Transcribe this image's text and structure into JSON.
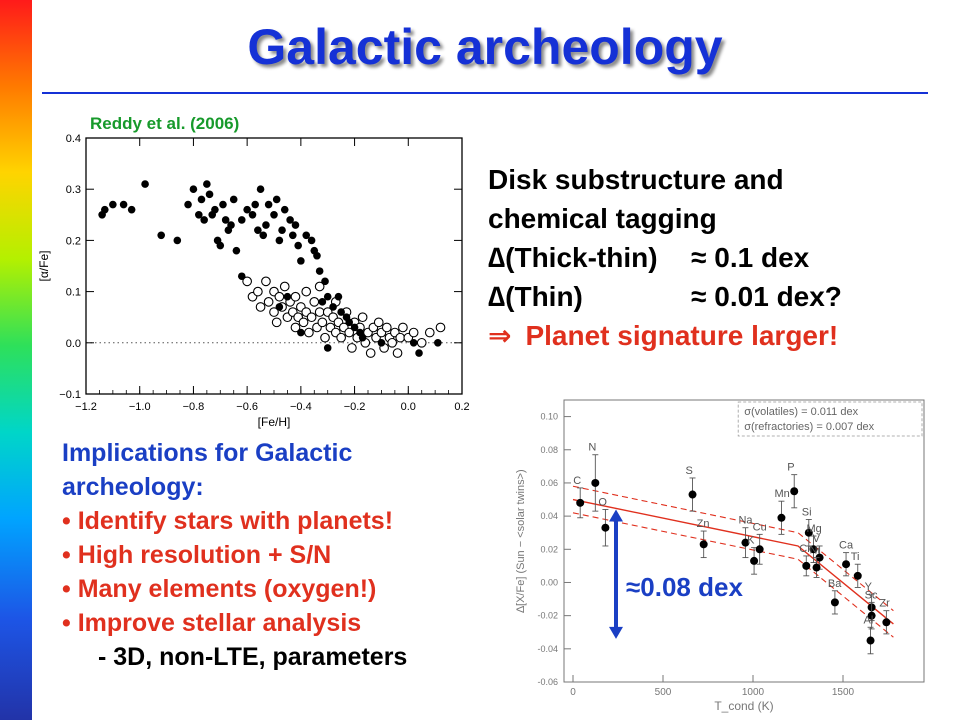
{
  "slide": {
    "title": "Galactic archeology",
    "citation": "Reddy et al. (2006)",
    "headline": [
      "Disk substructure and",
      "chemical tagging"
    ],
    "deltas": [
      {
        "symbol": "∆",
        "label": "(Thick-thin)",
        "value": "≈ 0.1 dex"
      },
      {
        "symbol": "∆",
        "label": "(Thin)",
        "value": "≈ 0.01 dex?"
      }
    ],
    "conclusion": {
      "symbol": "⇒",
      "text": "Planet signature larger!"
    },
    "implications": {
      "heading": [
        "Implications for Galactic",
        "archeology:"
      ],
      "bullets": [
        "Identify stars with planets!",
        "High resolution + S/N",
        "Many elements (oxygen!)",
        "Improve stellar analysis"
      ],
      "subbullet": "3D, non-LTE, parameters"
    },
    "dex_annotation": "≈0.08 dex",
    "colors": {
      "title": "#1531d6",
      "citation": "#179a2b",
      "emphasis": "#e0301e",
      "body_blue": "#1a3fc4"
    }
  },
  "chart_data": [
    {
      "type": "scatter",
      "xlabel": "[Fe/H]",
      "ylabel": "[α/Fe]",
      "xlim": [
        -1.2,
        0.2
      ],
      "ylim": [
        -0.1,
        0.4
      ],
      "xticks": [
        -1.2,
        -1.0,
        -0.8,
        -0.6,
        -0.4,
        -0.2,
        0.0,
        0.2
      ],
      "yticks": [
        -0.1,
        0.0,
        0.1,
        0.2,
        0.3,
        0.4
      ],
      "xtick_labels": [
        "-1.2",
        "-1.0",
        "-0.8",
        "-0.6",
        "-0.4",
        "-0.2",
        "0.0",
        "0.2"
      ],
      "ytick_labels": [
        "-0.1",
        "0.0",
        "0.1",
        "0.2",
        "0.3",
        "0.4"
      ],
      "reference_line": 0.0,
      "series": [
        {
          "marker": "filled",
          "points": [
            [
              -1.14,
              0.25
            ],
            [
              -1.13,
              0.26
            ],
            [
              -1.1,
              0.27
            ],
            [
              -1.06,
              0.27
            ],
            [
              -1.03,
              0.26
            ],
            [
              -0.98,
              0.31
            ],
            [
              -0.92,
              0.21
            ],
            [
              -0.86,
              0.2
            ],
            [
              -0.82,
              0.27
            ],
            [
              -0.8,
              0.3
            ],
            [
              -0.78,
              0.25
            ],
            [
              -0.77,
              0.28
            ],
            [
              -0.76,
              0.24
            ],
            [
              -0.75,
              0.31
            ],
            [
              -0.74,
              0.29
            ],
            [
              -0.73,
              0.25
            ],
            [
              -0.72,
              0.26
            ],
            [
              -0.71,
              0.2
            ],
            [
              -0.7,
              0.19
            ],
            [
              -0.69,
              0.27
            ],
            [
              -0.68,
              0.24
            ],
            [
              -0.67,
              0.22
            ],
            [
              -0.66,
              0.23
            ],
            [
              -0.65,
              0.28
            ],
            [
              -0.64,
              0.18
            ],
            [
              -0.62,
              0.24
            ],
            [
              -0.6,
              0.26
            ],
            [
              -0.58,
              0.25
            ],
            [
              -0.57,
              0.27
            ],
            [
              -0.56,
              0.22
            ],
            [
              -0.55,
              0.3
            ],
            [
              -0.54,
              0.21
            ],
            [
              -0.53,
              0.23
            ],
            [
              -0.52,
              0.27
            ],
            [
              -0.5,
              0.25
            ],
            [
              -0.49,
              0.28
            ],
            [
              -0.48,
              0.2
            ],
            [
              -0.47,
              0.22
            ],
            [
              -0.46,
              0.26
            ],
            [
              -0.44,
              0.24
            ],
            [
              -0.43,
              0.21
            ],
            [
              -0.42,
              0.23
            ],
            [
              -0.41,
              0.19
            ],
            [
              -0.4,
              0.16
            ],
            [
              -0.38,
              0.21
            ],
            [
              -0.36,
              0.2
            ],
            [
              -0.35,
              0.18
            ],
            [
              -0.34,
              0.17
            ],
            [
              -0.33,
              0.14
            ],
            [
              -0.31,
              0.12
            ],
            [
              -0.3,
              0.09
            ],
            [
              -0.28,
              0.07
            ],
            [
              -0.26,
              0.09
            ],
            [
              -0.25,
              0.06
            ],
            [
              -0.23,
              0.05
            ],
            [
              -0.22,
              0.04
            ],
            [
              -0.2,
              0.03
            ],
            [
              -0.18,
              0.02
            ],
            [
              -0.17,
              0.01
            ],
            [
              -0.1,
              0.0
            ],
            [
              0.02,
              0.0
            ],
            [
              0.04,
              -0.02
            ],
            [
              0.11,
              0.0
            ],
            [
              -0.62,
              0.13
            ],
            [
              -0.48,
              0.07
            ],
            [
              -0.45,
              0.09
            ],
            [
              -0.4,
              0.02
            ],
            [
              -0.32,
              0.08
            ],
            [
              -0.3,
              -0.01
            ]
          ]
        },
        {
          "marker": "open",
          "points": [
            [
              -0.6,
              0.12
            ],
            [
              -0.58,
              0.09
            ],
            [
              -0.56,
              0.1
            ],
            [
              -0.55,
              0.07
            ],
            [
              -0.53,
              0.12
            ],
            [
              -0.52,
              0.08
            ],
            [
              -0.5,
              0.1
            ],
            [
              -0.5,
              0.06
            ],
            [
              -0.49,
              0.04
            ],
            [
              -0.48,
              0.09
            ],
            [
              -0.47,
              0.07
            ],
            [
              -0.46,
              0.11
            ],
            [
              -0.45,
              0.05
            ],
            [
              -0.44,
              0.08
            ],
            [
              -0.43,
              0.06
            ],
            [
              -0.42,
              0.09
            ],
            [
              -0.42,
              0.03
            ],
            [
              -0.41,
              0.05
            ],
            [
              -0.4,
              0.07
            ],
            [
              -0.39,
              0.04
            ],
            [
              -0.38,
              0.06
            ],
            [
              -0.38,
              0.1
            ],
            [
              -0.37,
              0.02
            ],
            [
              -0.36,
              0.05
            ],
            [
              -0.35,
              0.08
            ],
            [
              -0.34,
              0.03
            ],
            [
              -0.33,
              0.06
            ],
            [
              -0.33,
              0.11
            ],
            [
              -0.32,
              0.04
            ],
            [
              -0.31,
              0.01
            ],
            [
              -0.3,
              0.06
            ],
            [
              -0.29,
              0.03
            ],
            [
              -0.28,
              0.05
            ],
            [
              -0.27,
              0.02
            ],
            [
              -0.27,
              0.08
            ],
            [
              -0.26,
              0.04
            ],
            [
              -0.25,
              0.01
            ],
            [
              -0.24,
              0.03
            ],
            [
              -0.23,
              0.06
            ],
            [
              -0.22,
              0.02
            ],
            [
              -0.21,
              -0.01
            ],
            [
              -0.2,
              0.04
            ],
            [
              -0.19,
              0.01
            ],
            [
              -0.18,
              0.03
            ],
            [
              -0.17,
              0.05
            ],
            [
              -0.16,
              0.0
            ],
            [
              -0.15,
              0.02
            ],
            [
              -0.14,
              -0.02
            ],
            [
              -0.13,
              0.03
            ],
            [
              -0.12,
              0.01
            ],
            [
              -0.11,
              0.04
            ],
            [
              -0.1,
              0.02
            ],
            [
              -0.09,
              -0.01
            ],
            [
              -0.08,
              0.03
            ],
            [
              -0.07,
              0.01
            ],
            [
              -0.06,
              0.0
            ],
            [
              -0.05,
              0.02
            ],
            [
              -0.04,
              -0.02
            ],
            [
              -0.03,
              0.01
            ],
            [
              -0.02,
              0.03
            ],
            [
              0.0,
              0.01
            ],
            [
              0.02,
              0.02
            ],
            [
              0.05,
              0.0
            ],
            [
              0.08,
              0.02
            ],
            [
              0.12,
              0.03
            ]
          ]
        }
      ]
    },
    {
      "type": "scatter",
      "xlabel": "T_cond (K)",
      "ylabel": "∆[X/Fe] (Sun − <solar twins>)",
      "xlim": [
        -50,
        1950
      ],
      "ylim": [
        -0.06,
        0.11
      ],
      "xticks": [
        0,
        500,
        1000,
        1500
      ],
      "yticks": [
        -0.06,
        -0.04,
        -0.02,
        0.0,
        0.02,
        0.04,
        0.06,
        0.08,
        0.1
      ],
      "xtick_labels": [
        "0",
        "500",
        "1000",
        "1500"
      ],
      "ytick_labels": [
        "-0.06",
        "-0.04",
        "-0.02",
        "0.00",
        "0.02",
        "0.04",
        "0.06",
        "0.08",
        "0.10"
      ],
      "legend": [
        "σ(volatiles) = 0.011 dex",
        "σ(refractories) = 0.007 dex"
      ],
      "legend_position": "top-right",
      "points": [
        {
          "label": "C",
          "x": 40,
          "y": 0.048,
          "err": 0.009
        },
        {
          "label": "N",
          "x": 124,
          "y": 0.06,
          "err": 0.017
        },
        {
          "label": "O",
          "x": 180,
          "y": 0.033,
          "err": 0.011
        },
        {
          "label": "S",
          "x": 664,
          "y": 0.053,
          "err": 0.01
        },
        {
          "label": "Zn",
          "x": 726,
          "y": 0.023,
          "err": 0.008
        },
        {
          "label": "Na",
          "x": 958,
          "y": 0.024,
          "err": 0.009
        },
        {
          "label": "K",
          "x": 1006,
          "y": 0.013,
          "err": 0.008
        },
        {
          "label": "Cu",
          "x": 1037,
          "y": 0.02,
          "err": 0.009
        },
        {
          "label": "Mn",
          "x": 1158,
          "y": 0.039,
          "err": 0.01
        },
        {
          "label": "P",
          "x": 1229,
          "y": 0.055,
          "err": 0.01
        },
        {
          "label": "Si",
          "x": 1310,
          "y": 0.03,
          "err": 0.008
        },
        {
          "label": "Mg",
          "x": 1336,
          "y": 0.02,
          "err": 0.008
        },
        {
          "label": "Cr",
          "x": 1296,
          "y": 0.01,
          "err": 0.006
        },
        {
          "label": "V",
          "x": 1370,
          "y": 0.015,
          "err": 0.007
        },
        {
          "label": "Ni",
          "x": 1353,
          "y": 0.009,
          "err": 0.006
        },
        {
          "label": "Ca",
          "x": 1517,
          "y": 0.011,
          "err": 0.007
        },
        {
          "label": "Ti",
          "x": 1582,
          "y": 0.004,
          "err": 0.007
        },
        {
          "label": "Ba",
          "x": 1455,
          "y": -0.012,
          "err": 0.007
        },
        {
          "label": "Y",
          "x": 1659,
          "y": -0.015,
          "err": 0.008
        },
        {
          "label": "Sc",
          "x": 1659,
          "y": -0.02,
          "err": 0.008
        },
        {
          "label": "Al",
          "x": 1653,
          "y": -0.035,
          "err": 0.008
        },
        {
          "label": "Zr",
          "x": 1741,
          "y": -0.024,
          "err": 0.007
        }
      ],
      "fit_line": [
        [
          0,
          0.05
        ],
        [
          1250,
          0.022
        ],
        [
          1780,
          -0.025
        ]
      ],
      "annotation": "≈0.08 dex"
    }
  ]
}
